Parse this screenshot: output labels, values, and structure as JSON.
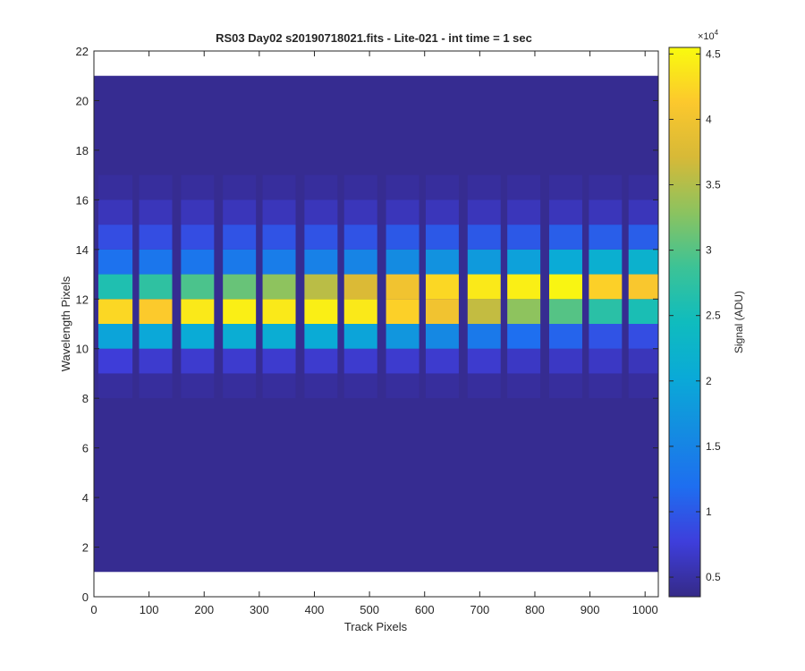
{
  "chart_data": {
    "type": "heatmap",
    "title": "RS03 Day02  s20190718021.fits - Lite-021 - int time = 1 sec",
    "xlabel": "Track Pixels",
    "ylabel": "Wavelength Pixels",
    "xlim": [
      0,
      1024
    ],
    "ylim": [
      0,
      22
    ],
    "xticks": [
      0,
      100,
      200,
      300,
      400,
      500,
      600,
      700,
      800,
      900,
      1000
    ],
    "yticks": [
      0,
      2,
      4,
      6,
      8,
      10,
      12,
      14,
      16,
      18,
      20,
      22
    ],
    "data_extent": {
      "x": [
        0,
        1024
      ],
      "y": [
        1,
        21
      ]
    },
    "colormap": "parula",
    "colorbar": {
      "label": "Signal (ADU)",
      "exponent_label": "×10",
      "exponent": "4",
      "range": [
        0.35,
        4.55
      ],
      "ticks": [
        0.5,
        1,
        1.5,
        2,
        2.5,
        3,
        3.5,
        4,
        4.5
      ],
      "tick_labels": [
        "0.5",
        "1",
        "1.5",
        "2",
        "2.5",
        "3",
        "3.5",
        "4",
        "4.5"
      ]
    },
    "background_value": 0.4,
    "track_gap_value": 0.45,
    "tracks": [
      {
        "x": [
          8,
          70
        ],
        "rows": {
          "9": 0.75,
          "10": 1.95,
          "11": 4.25,
          "12": 2.6,
          "13": 1.25,
          "14": 0.9,
          "15": 0.6
        }
      },
      {
        "x": [
          82,
          142
        ],
        "rows": {
          "9": 0.7,
          "10": 2.0,
          "11": 4.15,
          "12": 2.75,
          "13": 1.3,
          "14": 0.9,
          "15": 0.6
        }
      },
      {
        "x": [
          158,
          218
        ],
        "rows": {
          "9": 0.7,
          "10": 2.05,
          "11": 4.4,
          "12": 2.95,
          "13": 1.3,
          "14": 0.9,
          "15": 0.6
        }
      },
      {
        "x": [
          234,
          294
        ],
        "rows": {
          "9": 0.7,
          "10": 2.1,
          "11": 4.45,
          "12": 3.1,
          "13": 1.35,
          "14": 0.95,
          "15": 0.6
        }
      },
      {
        "x": [
          306,
          366
        ],
        "rows": {
          "9": 0.7,
          "10": 2.1,
          "11": 4.4,
          "12": 3.3,
          "13": 1.4,
          "14": 0.95,
          "15": 0.6
        }
      },
      {
        "x": [
          382,
          442
        ],
        "rows": {
          "9": 0.7,
          "10": 2.05,
          "11": 4.45,
          "12": 3.55,
          "13": 1.45,
          "14": 0.95,
          "15": 0.6
        }
      },
      {
        "x": [
          454,
          514
        ],
        "rows": {
          "9": 0.7,
          "10": 1.95,
          "11": 4.4,
          "12": 3.75,
          "13": 1.5,
          "14": 0.95,
          "15": 0.6
        }
      },
      {
        "x": [
          530,
          590
        ],
        "rows": {
          "9": 0.7,
          "10": 1.75,
          "11": 4.2,
          "12": 4.0,
          "13": 1.6,
          "14": 1.0,
          "15": 0.6
        }
      },
      {
        "x": [
          602,
          662
        ],
        "rows": {
          "9": 0.7,
          "10": 1.55,
          "11": 4.0,
          "12": 4.25,
          "13": 1.7,
          "14": 1.0,
          "15": 0.6
        }
      },
      {
        "x": [
          678,
          738
        ],
        "rows": {
          "9": 0.7,
          "10": 1.35,
          "11": 3.6,
          "12": 4.4,
          "13": 1.8,
          "14": 1.0,
          "15": 0.6
        }
      },
      {
        "x": [
          750,
          810
        ],
        "rows": {
          "9": 0.65,
          "10": 1.2,
          "11": 3.3,
          "12": 4.45,
          "13": 1.9,
          "14": 1.0,
          "15": 0.6
        }
      },
      {
        "x": [
          826,
          886
        ],
        "rows": {
          "9": 0.65,
          "10": 1.1,
          "11": 3.0,
          "12": 4.5,
          "13": 2.05,
          "14": 1.05,
          "15": 0.6
        }
      },
      {
        "x": [
          898,
          958
        ],
        "rows": {
          "9": 0.65,
          "10": 0.95,
          "11": 2.7,
          "12": 4.2,
          "13": 2.15,
          "14": 1.05,
          "15": 0.6
        }
      },
      {
        "x": [
          970,
          1024
        ],
        "rows": {
          "9": 0.6,
          "10": 0.9,
          "11": 2.55,
          "12": 4.1,
          "13": 2.2,
          "14": 1.05,
          "15": 0.6
        }
      }
    ]
  }
}
